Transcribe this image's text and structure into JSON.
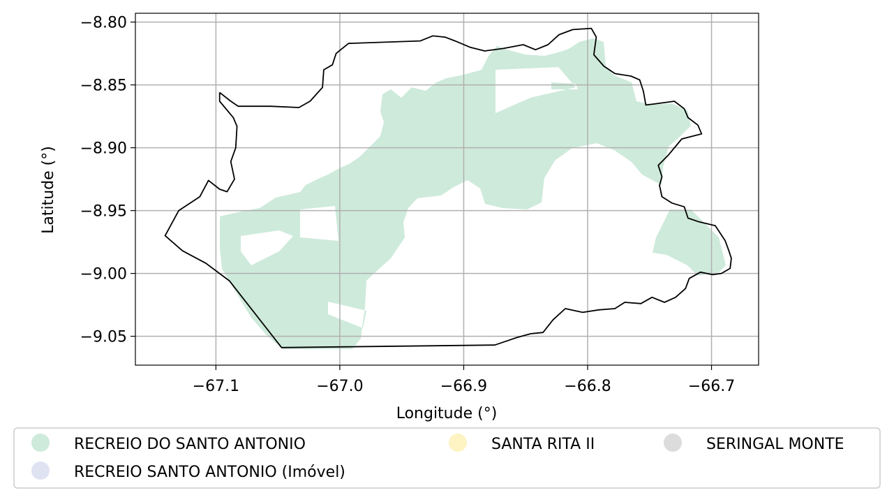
{
  "map": {
    "xlabel": "Longitude (°)",
    "ylabel": "Latitude (°)",
    "xlim": [
      -67.165,
      -66.662
    ],
    "ylim": [
      -9.073,
      -8.793
    ],
    "xticks": [
      {
        "value": -67.1,
        "label": "−67.1"
      },
      {
        "value": -67.0,
        "label": "−67.0"
      },
      {
        "value": -66.9,
        "label": "−66.9"
      },
      {
        "value": -66.8,
        "label": "−66.8"
      },
      {
        "value": -66.7,
        "label": "−66.7"
      }
    ],
    "yticks": [
      {
        "value": -8.8,
        "label": "−8.80"
      },
      {
        "value": -8.85,
        "label": "−8.85"
      },
      {
        "value": -8.9,
        "label": "−8.90"
      },
      {
        "value": -8.95,
        "label": "−8.95"
      },
      {
        "value": -9.0,
        "label": "−9.00"
      },
      {
        "value": -9.05,
        "label": "−9.05"
      }
    ],
    "grid": true,
    "boundary_color": "#000000",
    "boundary": [
      [
        -67.097,
        -8.856
      ],
      [
        -67.088,
        -8.863
      ],
      [
        -67.082,
        -8.867
      ],
      [
        -67.056,
        -8.867
      ],
      [
        -67.033,
        -8.868
      ],
      [
        -67.024,
        -8.863
      ],
      [
        -67.014,
        -8.852
      ],
      [
        -67.013,
        -8.838
      ],
      [
        -67.006,
        -8.834
      ],
      [
        -67.003,
        -8.825
      ],
      [
        -66.993,
        -8.817
      ],
      [
        -66.935,
        -8.815
      ],
      [
        -66.925,
        -8.811
      ],
      [
        -66.915,
        -8.812
      ],
      [
        -66.907,
        -8.815
      ],
      [
        -66.895,
        -8.82
      ],
      [
        -66.883,
        -8.823
      ],
      [
        -66.868,
        -8.821
      ],
      [
        -66.852,
        -8.818
      ],
      [
        -66.842,
        -8.822
      ],
      [
        -66.832,
        -8.818
      ],
      [
        -66.823,
        -8.81
      ],
      [
        -66.812,
        -8.806
      ],
      [
        -66.797,
        -8.805
      ],
      [
        -66.793,
        -8.812
      ],
      [
        -66.795,
        -8.826
      ],
      [
        -66.787,
        -8.835
      ],
      [
        -66.778,
        -8.841
      ],
      [
        -66.765,
        -8.843
      ],
      [
        -66.758,
        -8.846
      ],
      [
        -66.755,
        -8.855
      ],
      [
        -66.753,
        -8.866
      ],
      [
        -66.745,
        -8.865
      ],
      [
        -66.73,
        -8.863
      ],
      [
        -66.722,
        -8.869
      ],
      [
        -66.719,
        -8.876
      ],
      [
        -66.711,
        -8.882
      ],
      [
        -66.708,
        -8.889
      ],
      [
        -66.724,
        -8.893
      ],
      [
        -66.735,
        -8.906
      ],
      [
        -66.743,
        -8.914
      ],
      [
        -66.74,
        -8.923
      ],
      [
        -66.742,
        -8.93
      ],
      [
        -66.74,
        -8.939
      ],
      [
        -66.732,
        -8.944
      ],
      [
        -66.722,
        -8.947
      ],
      [
        -66.719,
        -8.956
      ],
      [
        -66.71,
        -8.959
      ],
      [
        -66.697,
        -8.962
      ],
      [
        -66.689,
        -8.974
      ],
      [
        -66.686,
        -8.982
      ],
      [
        -66.684,
        -8.988
      ],
      [
        -66.685,
        -8.996
      ],
      [
        -66.692,
        -9.0
      ],
      [
        -66.699,
        -9.001
      ],
      [
        -66.709,
        -8.999
      ],
      [
        -66.718,
        -9.004
      ],
      [
        -66.721,
        -9.012
      ],
      [
        -66.729,
        -9.019
      ],
      [
        -66.738,
        -9.023
      ],
      [
        -66.748,
        -9.019
      ],
      [
        -66.757,
        -9.024
      ],
      [
        -66.77,
        -9.023
      ],
      [
        -66.778,
        -9.028
      ],
      [
        -66.791,
        -9.029
      ],
      [
        -66.804,
        -9.031
      ],
      [
        -66.818,
        -9.028
      ],
      [
        -66.828,
        -9.037
      ],
      [
        -66.836,
        -9.047
      ],
      [
        -66.846,
        -9.048
      ],
      [
        -66.857,
        -9.051
      ],
      [
        -66.866,
        -9.054
      ],
      [
        -66.875,
        -9.057
      ],
      [
        -67.047,
        -9.059
      ],
      [
        -67.089,
        -9.006
      ],
      [
        -67.108,
        -8.992
      ],
      [
        -67.127,
        -8.982
      ],
      [
        -67.141,
        -8.97
      ],
      [
        -67.13,
        -8.95
      ],
      [
        -67.113,
        -8.939
      ],
      [
        -67.106,
        -8.926
      ],
      [
        -67.097,
        -8.933
      ],
      [
        -67.091,
        -8.935
      ],
      [
        -67.085,
        -8.925
      ],
      [
        -67.088,
        -8.911
      ],
      [
        -67.084,
        -8.9
      ],
      [
        -67.083,
        -8.883
      ],
      [
        -67.086,
        -8.876
      ],
      [
        -67.097,
        -8.863
      ]
    ],
    "legend": [
      {
        "label": "RECREIO DO SANTO ANTONIO",
        "color": "#ceeadb"
      },
      {
        "label": "RECREIO SANTO ANTONIO (Imóvel)",
        "color": "#dfe2f1"
      },
      {
        "label": "SANTA RITA II",
        "color": "#fdf3c3"
      },
      {
        "label": "SERINGAL MONTE",
        "color": "#dcdcdc"
      }
    ]
  }
}
